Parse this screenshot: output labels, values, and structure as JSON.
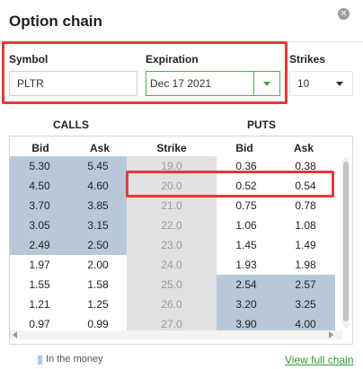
{
  "header": {
    "title": "Option chain",
    "close_icon": "close-icon"
  },
  "controls": {
    "symbol": {
      "label": "Symbol",
      "value": "PLTR"
    },
    "expiration": {
      "label": "Expiration",
      "value": "Dec 17 2021"
    },
    "strikes": {
      "label": "Strikes",
      "value": "10"
    }
  },
  "sections": {
    "calls": "CALLS",
    "puts": "PUTS"
  },
  "columns": {
    "bid": "Bid",
    "ask": "Ask",
    "strike": "Strike",
    "put_bid": "Bid",
    "put_ask": "Ask"
  },
  "rows": [
    {
      "call_bid": "5.30",
      "call_ask": "5.45",
      "strike": "19.0",
      "put_bid": "0.36",
      "put_ask": "0.38"
    },
    {
      "call_bid": "4.50",
      "call_ask": "4.60",
      "strike": "20.0",
      "put_bid": "0.52",
      "put_ask": "0.54"
    },
    {
      "call_bid": "3.70",
      "call_ask": "3.85",
      "strike": "21.0",
      "put_bid": "0.75",
      "put_ask": "0.78"
    },
    {
      "call_bid": "3.05",
      "call_ask": "3.15",
      "strike": "22.0",
      "put_bid": "1.06",
      "put_ask": "1.08"
    },
    {
      "call_bid": "2.49",
      "call_ask": "2.50",
      "strike": "23.0",
      "put_bid": "1.45",
      "put_ask": "1.49"
    },
    {
      "call_bid": "1.97",
      "call_ask": "2.00",
      "strike": "24.0",
      "put_bid": "1.93",
      "put_ask": "1.98"
    },
    {
      "call_bid": "1.55",
      "call_ask": "1.58",
      "strike": "25.0",
      "put_bid": "2.54",
      "put_ask": "2.57"
    },
    {
      "call_bid": "1.21",
      "call_ask": "1.25",
      "strike": "26.0",
      "put_bid": "3.20",
      "put_ask": "3.25"
    },
    {
      "call_bid": "0.97",
      "call_ask": "0.99",
      "strike": "27.0",
      "put_bid": "3.90",
      "put_ask": "4.00"
    }
  ],
  "footer": {
    "legend": "In the money",
    "link": "View full chain"
  },
  "colors": {
    "in_the_money": "#b7c8d9",
    "highlight": "#e53935",
    "link": "#2e9d2e"
  }
}
